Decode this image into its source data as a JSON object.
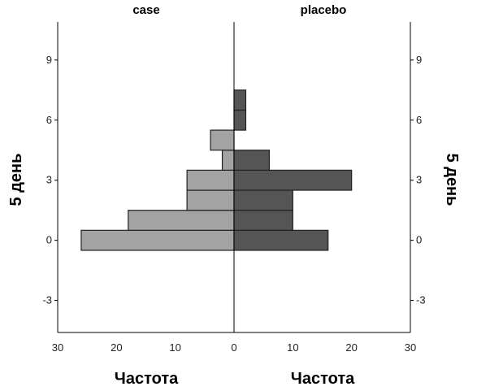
{
  "chart_data": {
    "type": "bar",
    "subtype": "back-to-back-histogram",
    "ylabel": "5 день",
    "y_ticks": [
      -3,
      0,
      3,
      6,
      9
    ],
    "ylim": [
      -4.6,
      10.9
    ],
    "bin_width": 1,
    "panels": [
      {
        "title": "case",
        "xlabel": "Частота",
        "x_ticks": [
          30,
          20,
          10,
          0
        ],
        "xlim": [
          30,
          0
        ],
        "color": "#a3a3a3",
        "bins": [
          {
            "y": 0,
            "count": 26
          },
          {
            "y": 1,
            "count": 18
          },
          {
            "y": 2,
            "count": 8
          },
          {
            "y": 3,
            "count": 8
          },
          {
            "y": 4,
            "count": 2
          },
          {
            "y": 5,
            "count": 4
          }
        ]
      },
      {
        "title": "placebo",
        "xlabel": "Частота",
        "x_ticks": [
          0,
          10,
          20,
          30
        ],
        "xlim": [
          0,
          30
        ],
        "color": "#555555",
        "bins": [
          {
            "y": 0,
            "count": 16
          },
          {
            "y": 1,
            "count": 10
          },
          {
            "y": 2,
            "count": 10
          },
          {
            "y": 3,
            "count": 20
          },
          {
            "y": 4,
            "count": 6
          },
          {
            "y": 6,
            "count": 2
          },
          {
            "y": 7,
            "count": 2
          }
        ]
      }
    ]
  }
}
